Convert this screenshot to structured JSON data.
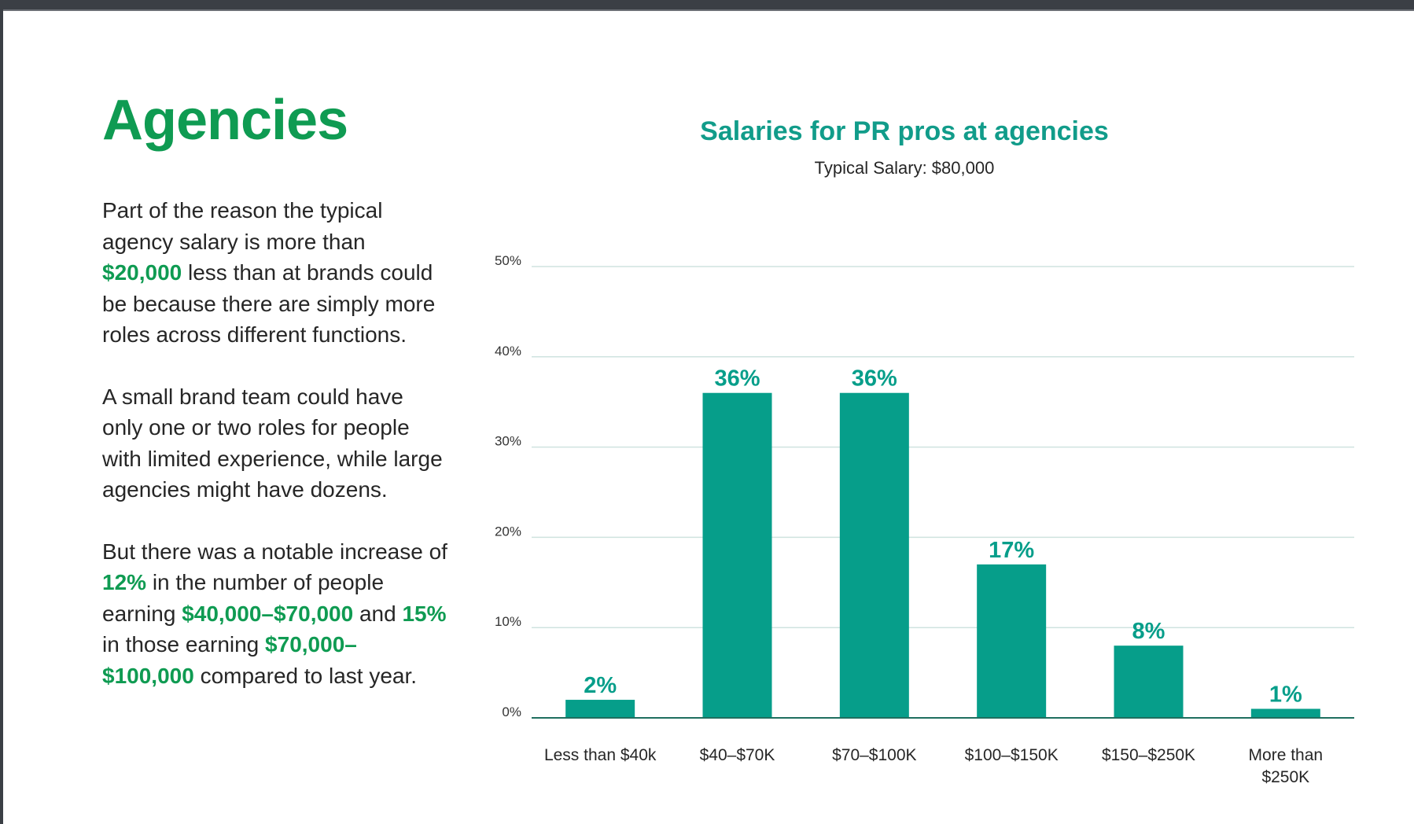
{
  "page": {
    "heading": "Agencies",
    "paragraph1": {
      "a": "Part of the reason the typical agency salary is more than ",
      "b": "$20,000",
      "c": " less than at brands could be because there are simply more roles across different functions."
    },
    "paragraph2": "A small brand team could have only one or two roles for people with limited experience, while large agencies might have dozens.",
    "paragraph3": {
      "a": "But there was a notable increase of ",
      "b": "12%",
      "c": " in the number of people earning ",
      "d": "$40,000–$70,000",
      "e": " and ",
      "f": "15%",
      "g": " in those earning ",
      "h": "$70,000–$100,000",
      "i": " compared to last year."
    }
  },
  "colors": {
    "heading_green": "#0f9b52",
    "chart_teal": "#069e8a",
    "gridline": "#cfe3df",
    "axis": "#1f6f5f"
  },
  "chart_data": {
    "type": "bar",
    "title": "Salaries for PR pros at agencies",
    "subtitle": "Typical Salary: $80,000",
    "categories": [
      "Less than $40k",
      "$40–$70K",
      "$70–$100K",
      "$100–$150K",
      "$150–$250K",
      "More than $250K"
    ],
    "category_lines": [
      [
        "Less than $40k"
      ],
      [
        "$40–$70K"
      ],
      [
        "$70–$100K"
      ],
      [
        "$100–$150K"
      ],
      [
        "$150–$250K"
      ],
      [
        "More than",
        "$250K"
      ]
    ],
    "values": [
      2,
      36,
      36,
      17,
      8,
      1
    ],
    "data_labels": [
      "2%",
      "36%",
      "36%",
      "17%",
      "8%",
      "1%"
    ],
    "yticks": [
      0,
      10,
      20,
      30,
      40,
      50
    ],
    "ytick_labels": [
      "0%",
      "10%",
      "20%",
      "30%",
      "40%",
      "50%"
    ],
    "ylim": [
      0,
      50
    ],
    "xlabel": "",
    "ylabel": "",
    "grid": true
  }
}
